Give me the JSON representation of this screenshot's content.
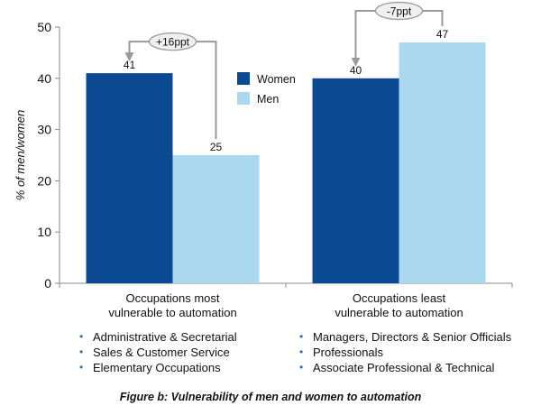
{
  "chart_data": {
    "type": "bar",
    "ylabel": "% of men/women",
    "ylim": [
      0,
      50
    ],
    "yticks": [
      0,
      10,
      20,
      30,
      40,
      50
    ],
    "categories": [
      [
        "Occupations most",
        "vulnerable to automation"
      ],
      [
        "Occupations least",
        "vulnerable to automation"
      ]
    ],
    "series": [
      {
        "name": "Women",
        "color": "#0b4a93",
        "values": [
          41,
          40
        ],
        "labels": [
          "41",
          "40"
        ]
      },
      {
        "name": "Men",
        "color": "#aad9ef",
        "values": [
          25,
          47
        ],
        "labels": [
          "25",
          "47"
        ]
      }
    ],
    "annotations": [
      "+16ppt",
      "-7ppt"
    ],
    "legend": {
      "placement": "center"
    },
    "grid": false
  },
  "bullets": {
    "left": [
      "Administrative & Secretarial",
      "Sales & Customer Service",
      "Elementary Occupations"
    ],
    "right": [
      "Managers, Directors & Senior Officials",
      "Professionals",
      "Associate Professional & Technical"
    ]
  },
  "caption": "Figure b: Vulnerability of men and women to automation"
}
